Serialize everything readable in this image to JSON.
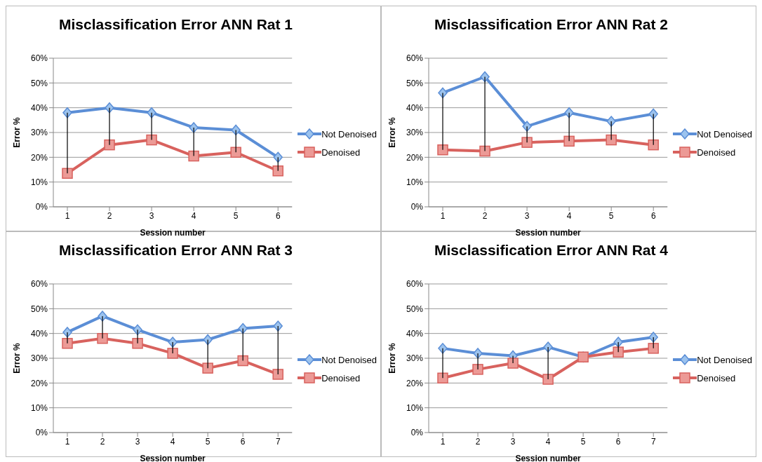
{
  "chart_data": [
    {
      "type": "line",
      "title": "Misclassification Error ANN Rat 1",
      "xlabel": "Session number",
      "ylabel": "Error %",
      "categories": [
        "1",
        "2",
        "3",
        "4",
        "5",
        "6"
      ],
      "ylim": [
        0,
        60
      ],
      "yticks": [
        {
          "value": 0,
          "label": "0%"
        },
        {
          "value": 10,
          "label": "10%"
        },
        {
          "value": 20,
          "label": "20%"
        },
        {
          "value": 30,
          "label": "30%"
        },
        {
          "value": 40,
          "label": "40%"
        },
        {
          "value": 50,
          "label": "50%"
        },
        {
          "value": 60,
          "label": "60%"
        }
      ],
      "grid": "y",
      "legend": "right",
      "series": [
        {
          "name": "Not Denoised",
          "color": "#5b8ed6",
          "marker": "diamond",
          "values": [
            38,
            40,
            38,
            32,
            31,
            20
          ]
        },
        {
          "name": "Denoised",
          "color": "#d8625e",
          "marker": "square",
          "values": [
            13.5,
            25,
            27,
            20.5,
            22,
            14.5
          ]
        }
      ]
    },
    {
      "type": "line",
      "title": "Misclassification Error ANN Rat 2",
      "xlabel": "Session number",
      "ylabel": "Error %",
      "categories": [
        "1",
        "2",
        "3",
        "4",
        "5",
        "6"
      ],
      "ylim": [
        0,
        60
      ],
      "yticks": [
        {
          "value": 0,
          "label": "0%"
        },
        {
          "value": 10,
          "label": "10%"
        },
        {
          "value": 20,
          "label": "20%"
        },
        {
          "value": 30,
          "label": "30%"
        },
        {
          "value": 40,
          "label": "40%"
        },
        {
          "value": 50,
          "label": "50%"
        },
        {
          "value": 60,
          "label": "60%"
        }
      ],
      "grid": "y",
      "legend": "right",
      "series": [
        {
          "name": "Not Denoised",
          "color": "#5b8ed6",
          "marker": "diamond",
          "values": [
            46,
            52.5,
            32.5,
            38,
            34.5,
            37.5
          ]
        },
        {
          "name": "Denoised",
          "color": "#d8625e",
          "marker": "square",
          "values": [
            23,
            22.5,
            26,
            26.5,
            27,
            25
          ]
        }
      ]
    },
    {
      "type": "line",
      "title": "Misclassification Error ANN Rat 3",
      "xlabel": "Session number",
      "ylabel": "Error %",
      "categories": [
        "1",
        "2",
        "3",
        "4",
        "5",
        "6",
        "7"
      ],
      "ylim": [
        0,
        60
      ],
      "yticks": [
        {
          "value": 0,
          "label": "0%"
        },
        {
          "value": 10,
          "label": "10%"
        },
        {
          "value": 20,
          "label": "20%"
        },
        {
          "value": 30,
          "label": "30%"
        },
        {
          "value": 40,
          "label": "40%"
        },
        {
          "value": 50,
          "label": "50%"
        },
        {
          "value": 60,
          "label": "60%"
        }
      ],
      "grid": "y",
      "legend": "right",
      "series": [
        {
          "name": "Not Denoised",
          "color": "#5b8ed6",
          "marker": "diamond",
          "values": [
            40.5,
            47,
            41.5,
            36.5,
            37.5,
            42,
            43
          ]
        },
        {
          "name": "Denoised",
          "color": "#d8625e",
          "marker": "square",
          "values": [
            36,
            38,
            36,
            32,
            26,
            29,
            23.5
          ]
        }
      ]
    },
    {
      "type": "line",
      "title": "Misclassification Error ANN Rat 4",
      "xlabel": "Session number",
      "ylabel": "Error %",
      "categories": [
        "1",
        "2",
        "3",
        "4",
        "5",
        "6",
        "7"
      ],
      "ylim": [
        0,
        60
      ],
      "yticks": [
        {
          "value": 0,
          "label": "0%"
        },
        {
          "value": 10,
          "label": "10%"
        },
        {
          "value": 20,
          "label": "20%"
        },
        {
          "value": 30,
          "label": "30%"
        },
        {
          "value": 40,
          "label": "40%"
        },
        {
          "value": 50,
          "label": "50%"
        },
        {
          "value": 60,
          "label": "60%"
        }
      ],
      "grid": "y",
      "legend": "right",
      "series": [
        {
          "name": "Not Denoised",
          "color": "#5b8ed6",
          "marker": "diamond",
          "values": [
            34,
            32,
            31,
            34.5,
            30.5,
            36.5,
            38.5
          ]
        },
        {
          "name": "Denoised",
          "color": "#d8625e",
          "marker": "square",
          "values": [
            22,
            25.5,
            28,
            21.5,
            30.5,
            32.5,
            34
          ]
        }
      ]
    }
  ]
}
